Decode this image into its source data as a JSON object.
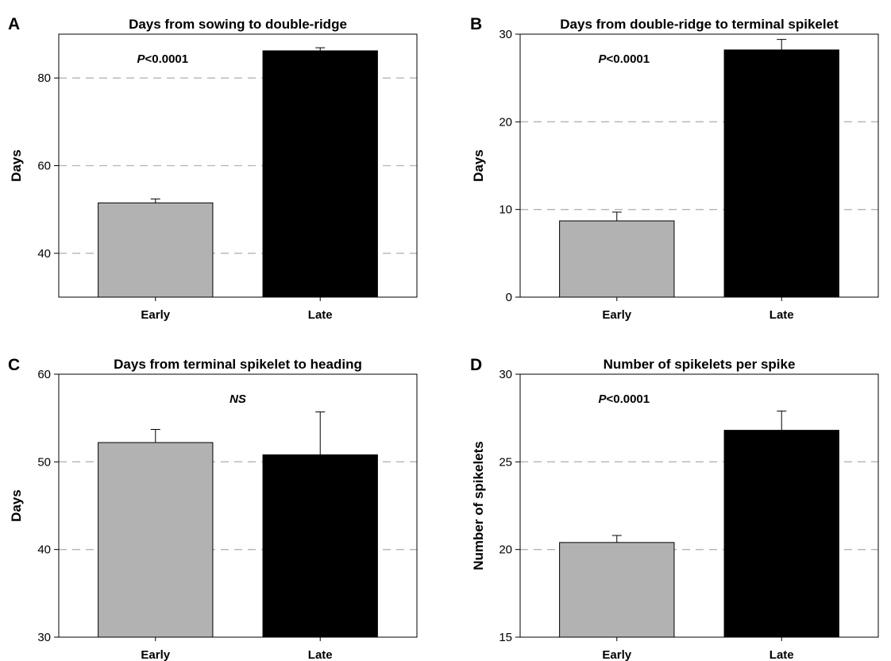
{
  "chart_data": [
    {
      "panel": "A",
      "type": "bar",
      "title": "Days from sowing to double-ridge",
      "xlabel": "",
      "ylabel": "Days",
      "ylim": [
        30,
        90
      ],
      "yticks": [
        40,
        60,
        80
      ],
      "grid_values": [
        40,
        60,
        80
      ],
      "grid": true,
      "categories": [
        "Early",
        "Late"
      ],
      "values": [
        51.5,
        86.2
      ],
      "errors": [
        0.9,
        0.7
      ],
      "colors": [
        "#b2b2b2",
        "#000000"
      ],
      "annotation": "P<0.0001",
      "annotation_italic_prefix": "P",
      "annotation_rest": "<0.0001"
    },
    {
      "panel": "B",
      "type": "bar",
      "title": "Days from double-ridge to terminal spikelet",
      "xlabel": "",
      "ylabel": "Days",
      "ylim": [
        0,
        30
      ],
      "yticks": [
        0,
        10,
        20,
        30
      ],
      "grid_values": [
        10,
        20
      ],
      "grid": true,
      "categories": [
        "Early",
        "Late"
      ],
      "values": [
        8.7,
        28.2
      ],
      "errors": [
        1.0,
        1.2
      ],
      "colors": [
        "#b2b2b2",
        "#000000"
      ],
      "annotation": "P<0.0001",
      "annotation_italic_prefix": "P",
      "annotation_rest": "<0.0001"
    },
    {
      "panel": "C",
      "type": "bar",
      "title": "Days from terminal spikelet to heading",
      "xlabel": "",
      "ylabel": "Days",
      "ylim": [
        30,
        60
      ],
      "yticks": [
        30,
        40,
        50,
        60
      ],
      "grid_values": [
        40,
        50
      ],
      "grid": true,
      "categories": [
        "Early",
        "Late"
      ],
      "values": [
        52.2,
        50.8
      ],
      "errors": [
        1.5,
        4.9
      ],
      "colors": [
        "#b2b2b2",
        "#000000"
      ],
      "annotation": "NS",
      "annotation_italic_prefix": "NS",
      "annotation_rest": ""
    },
    {
      "panel": "D",
      "type": "bar",
      "title": "Number of spikelets per spike",
      "xlabel": "",
      "ylabel": "Number of spikelets",
      "ylim": [
        15,
        30
      ],
      "yticks": [
        15,
        20,
        25,
        30
      ],
      "grid_values": [
        20,
        25
      ],
      "grid": true,
      "categories": [
        "Early",
        "Late"
      ],
      "values": [
        20.4,
        26.8
      ],
      "errors": [
        0.4,
        1.1
      ],
      "colors": [
        "#b2b2b2",
        "#000000"
      ],
      "annotation": "P<0.0001",
      "annotation_italic_prefix": "P",
      "annotation_rest": "<0.0001"
    }
  ]
}
